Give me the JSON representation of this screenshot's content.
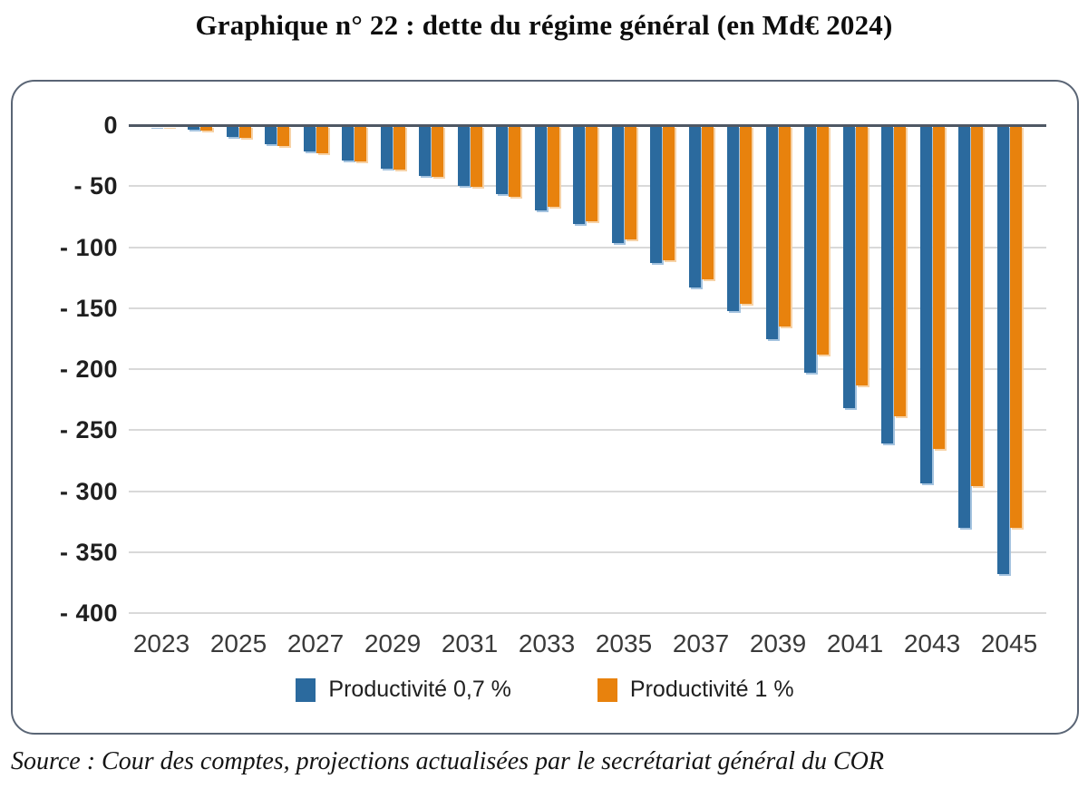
{
  "page": {
    "title": "Graphique n° 22 : dette du régime général (en Md€ 2024)",
    "source": "Source : Cour des comptes, projections actualisées par le secrétariat général du COR"
  },
  "chart_data": {
    "type": "bar",
    "title": "Graphique n° 22 : dette du régime général (en Md€ 2024)",
    "unit": "Md€ 2024",
    "categories": [
      2023,
      2024,
      2025,
      2026,
      2027,
      2028,
      2029,
      2030,
      2031,
      2032,
      2033,
      2034,
      2035,
      2036,
      2037,
      2038,
      2039,
      2040,
      2041,
      2042,
      2043,
      2044,
      2045
    ],
    "series": [
      {
        "name": "Productivité 0,7 %",
        "color": "#2b6a9e",
        "values": [
          -1,
          -3,
          -9,
          -15,
          -21,
          -28,
          -35,
          -41,
          -49,
          -56,
          -69,
          -80,
          -96,
          -112,
          -132,
          -152,
          -175,
          -202,
          -231,
          -260,
          -293,
          -329,
          -367
        ]
      },
      {
        "name": "Productivité 1 %",
        "color": "#e8820d",
        "values": [
          -1,
          -4,
          -10,
          -16,
          -22,
          -29,
          -36,
          -42,
          -50,
          -58,
          -66,
          -78,
          -93,
          -110,
          -126,
          -146,
          -164,
          -187,
          -213,
          -238,
          -265,
          -295,
          -329
        ]
      }
    ],
    "ylim": [
      0,
      -400
    ],
    "yticks": [
      0,
      -50,
      -100,
      -150,
      -200,
      -250,
      -300,
      -350,
      -400
    ],
    "ytick_labels": [
      "0",
      "- 50",
      "- 100",
      "- 150",
      "- 200",
      "- 250",
      "- 300",
      "- 350",
      "- 400"
    ],
    "xtick_labels": [
      "2023",
      "2025",
      "2027",
      "2029",
      "2031",
      "2033",
      "2035",
      "2037",
      "2039",
      "2041",
      "2043",
      "2045"
    ],
    "xtick_indices": [
      0,
      2,
      4,
      6,
      8,
      10,
      12,
      14,
      16,
      18,
      20,
      22
    ],
    "grid": "horizontal-only",
    "legend_position": "bottom",
    "gridline_color": "#d9d9d9",
    "zero_line_color": "#4f5864",
    "frame_border_color": "#5a6575"
  }
}
